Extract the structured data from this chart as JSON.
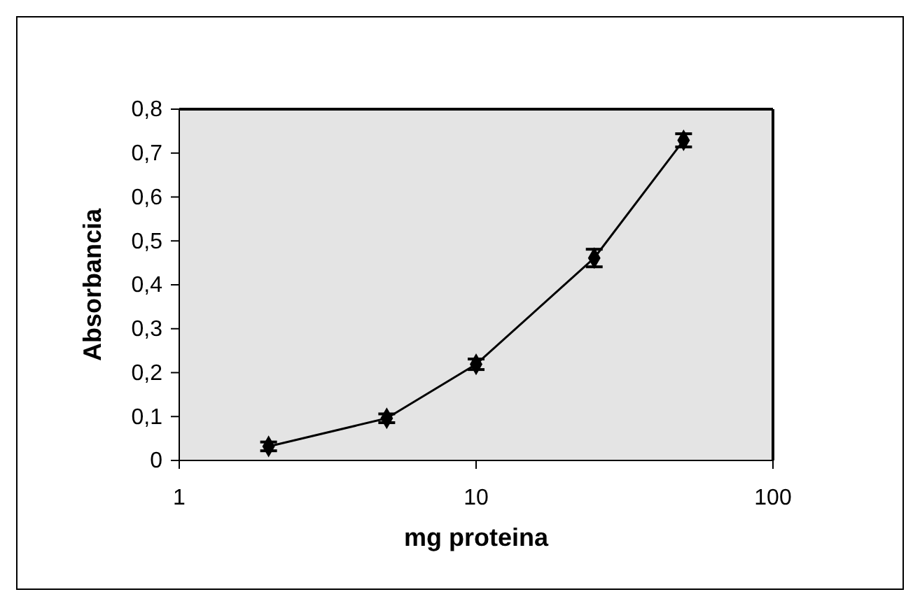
{
  "chart_data": {
    "type": "line",
    "xlabel": "mg proteina",
    "ylabel": "Absorbancia",
    "log": "x",
    "x": [
      2,
      5,
      10,
      25,
      50
    ],
    "series": [
      {
        "color": "#000000",
        "values": [
          0.032,
          0.096,
          0.219,
          0.461,
          0.729
        ],
        "errors": [
          0.01,
          0.01,
          0.012,
          0.02,
          0.015
        ]
      }
    ],
    "xlim": [
      1,
      100
    ],
    "xticks": [
      1,
      10,
      100
    ],
    "ylim": [
      0,
      0.8
    ],
    "yticks": [
      {
        "value": 0,
        "label": "0"
      },
      {
        "value": 0.1,
        "label": "0,1"
      },
      {
        "value": 0.2,
        "label": "0,2"
      },
      {
        "value": 0.3,
        "label": "0,3"
      },
      {
        "value": 0.4,
        "label": "0,4"
      },
      {
        "value": 0.5,
        "label": "0,5"
      },
      {
        "value": 0.6,
        "label": "0,6"
      },
      {
        "value": 0.7,
        "label": "0,7"
      },
      {
        "value": 0.8,
        "label": "0,8"
      }
    ],
    "grid": false,
    "marker": "diamond",
    "line_style": "solid"
  }
}
